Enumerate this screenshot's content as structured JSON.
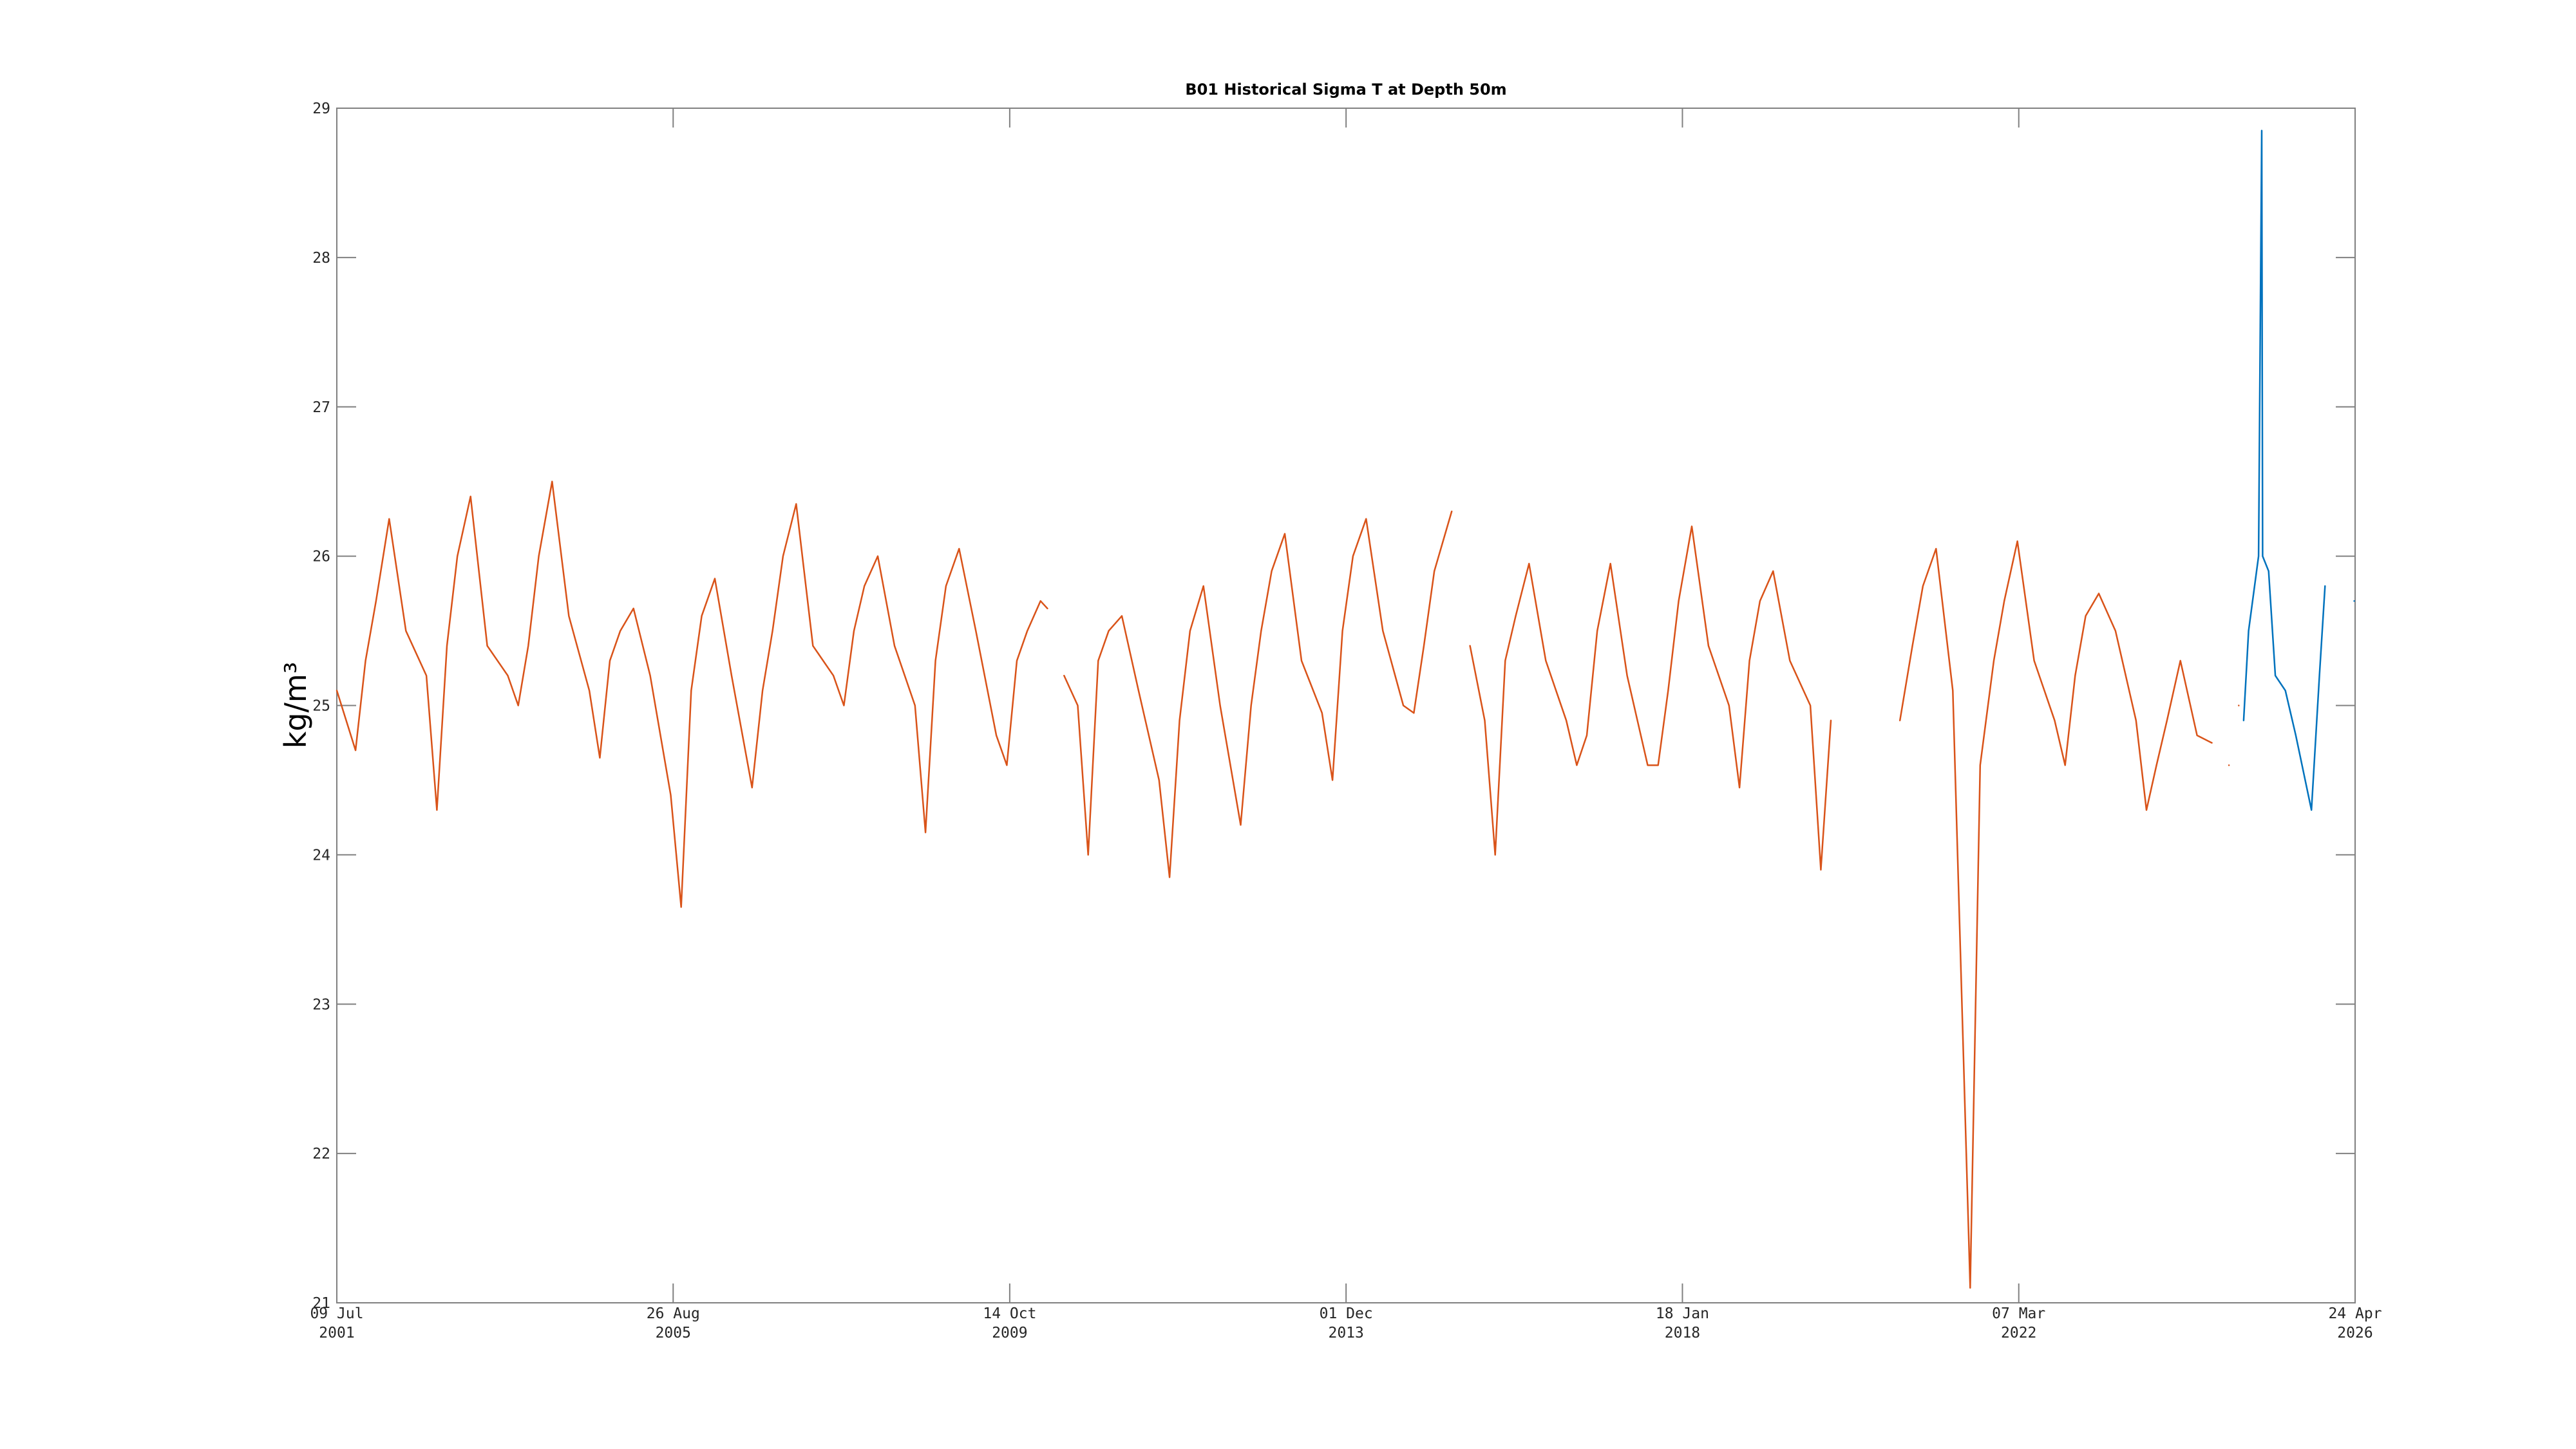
{
  "chart_data": {
    "type": "line",
    "title": "B01 Historical Sigma T at Depth 50m",
    "y_label": "kg/m³",
    "xlim": [
      "2001-07-09",
      "2026-04-24"
    ],
    "xticks": [
      {
        "value": "2001-07-09",
        "label": [
          "09 Jul",
          "2001"
        ]
      },
      {
        "value": "2005-08-26",
        "label": [
          "26 Aug",
          "2005"
        ]
      },
      {
        "value": "2009-10-14",
        "label": [
          "14 Oct",
          "2009"
        ]
      },
      {
        "value": "2013-12-01",
        "label": [
          "01 Dec",
          "2013"
        ]
      },
      {
        "value": "2018-01-18",
        "label": [
          "18 Jan",
          "2018"
        ]
      },
      {
        "value": "2022-03-07",
        "label": [
          "07 Mar",
          "2022"
        ]
      },
      {
        "value": "2026-04-24",
        "label": [
          "24 Apr",
          "2026"
        ]
      }
    ],
    "ylim": [
      21,
      29
    ],
    "yticks": [
      21,
      22,
      23,
      24,
      25,
      26,
      27,
      28,
      29
    ],
    "grid": false,
    "series": [
      {
        "color": "#D95319",
        "x": [
          "2001-07-09",
          "2001-10-01",
          "2001-11-15",
          "2002-01-01",
          "2002-03-01",
          "2002-05-15",
          "2002-08-15",
          "2002-10-01",
          "2002-11-15",
          "2003-01-01",
          "2003-03-01",
          "2003-05-15",
          "2003-08-15",
          "2003-10-01",
          "2003-11-15",
          "2004-01-01",
          "2004-03-01",
          "2004-05-15",
          "2004-08-15",
          "2004-10-01",
          "2004-11-15",
          "2005-01-01",
          "2005-03-01",
          "2005-05-15",
          "2005-08-15",
          "2005-10-01",
          "2005-11-15",
          "2006-01-01",
          "2006-03-01",
          "2006-05-15",
          "2006-08-15",
          "2006-10-01",
          "2006-11-15",
          "2007-01-01",
          "2007-03-01",
          "2007-05-15",
          "2007-08-15",
          "2007-10-01",
          "2007-11-15",
          "2008-01-01",
          "2008-03-01",
          "2008-05-15",
          "2008-08-15",
          "2008-10-01",
          "2008-11-15",
          "2009-01-01",
          "2009-03-01",
          "2009-05-15",
          "2009-08-15",
          "2009-10-01",
          "2009-11-15",
          "2010-01-01",
          "2010-03-01",
          "2010-04-01",
          "2010-05-01",
          "2010-06-15",
          "2010-08-15",
          "2010-10-01",
          "2010-11-15",
          "2011-01-01",
          "2011-03-01",
          "2011-05-15",
          "2011-08-15",
          "2011-10-01",
          "2011-11-15",
          "2012-01-01",
          "2012-03-01",
          "2012-05-15",
          "2012-08-15",
          "2012-10-01",
          "2012-11-15",
          "2013-01-01",
          "2013-03-01",
          "2013-05-15",
          "2013-08-15",
          "2013-10-01",
          "2013-11-15",
          "2014-01-01",
          "2014-03-01",
          "2014-05-15",
          "2014-08-15",
          "2014-10-01",
          "2014-11-15",
          "2015-01-01",
          "2015-03-20",
          "2015-04-15",
          "2015-06-10",
          "2015-08-15",
          "2015-10-01",
          "2015-11-15",
          "2016-01-01",
          "2016-03-01",
          "2016-05-15",
          "2016-08-15",
          "2016-10-01",
          "2016-11-15",
          "2017-01-01",
          "2017-03-01",
          "2017-05-15",
          "2017-08-15",
          "2017-10-01",
          "2017-11-15",
          "2018-01-01",
          "2018-03-01",
          "2018-05-15",
          "2018-08-15",
          "2018-10-01",
          "2018-11-15",
          "2019-01-01",
          "2019-03-01",
          "2019-05-15",
          "2019-08-15",
          "2019-10-01",
          "2019-11-15",
          "2020-03-01",
          "2020-09-20",
          "2020-11-15",
          "2021-01-01",
          "2021-03-01",
          "2021-05-15",
          "2021-08-01",
          "2021-09-15",
          "2021-11-15",
          "2022-01-01",
          "2022-03-01",
          "2022-05-15",
          "2022-08-15",
          "2022-10-01",
          "2022-11-15",
          "2023-01-01",
          "2023-03-01",
          "2023-05-15",
          "2023-08-15",
          "2023-10-01",
          "2023-11-15",
          "2024-01-01",
          "2024-03-01",
          "2024-05-15",
          "2024-07-20",
          "2024-09-01",
          "2024-10-05",
          "2024-10-20",
          "2024-11-18"
        ],
        "values": [
          25.1,
          24.7,
          25.3,
          25.7,
          26.25,
          25.5,
          25.2,
          24.3,
          25.4,
          26.0,
          26.4,
          25.4,
          25.2,
          25.0,
          25.4,
          26.0,
          26.5,
          25.6,
          25.1,
          24.65,
          25.3,
          25.5,
          25.65,
          25.2,
          24.4,
          23.65,
          25.1,
          25.6,
          25.85,
          25.2,
          24.45,
          25.1,
          25.5,
          26.0,
          26.35,
          25.4,
          25.2,
          25.0,
          25.5,
          25.8,
          26.0,
          25.4,
          25.0,
          24.15,
          25.3,
          25.8,
          26.05,
          25.5,
          24.8,
          24.6,
          25.3,
          25.5,
          25.7,
          25.65,
          null,
          25.2,
          25.0,
          24.0,
          25.3,
          25.5,
          25.6,
          25.1,
          24.5,
          23.85,
          24.9,
          25.5,
          25.8,
          25.0,
          24.2,
          25.0,
          25.5,
          25.9,
          26.15,
          25.3,
          24.95,
          24.5,
          25.5,
          26.0,
          26.25,
          25.5,
          25.0,
          24.95,
          25.4,
          25.9,
          26.3,
          null,
          25.4,
          24.9,
          24.0,
          25.3,
          25.6,
          25.95,
          25.3,
          24.9,
          24.6,
          24.8,
          25.5,
          25.95,
          25.2,
          24.6,
          24.6,
          25.1,
          25.7,
          26.2,
          25.4,
          25.0,
          24.45,
          25.3,
          25.7,
          25.9,
          25.3,
          25.0,
          23.9,
          24.9,
          null,
          24.9,
          25.4,
          25.8,
          26.05,
          25.1,
          21.1,
          24.6,
          25.3,
          25.7,
          26.1,
          25.3,
          24.9,
          24.6,
          25.2,
          25.6,
          25.75,
          25.5,
          24.9,
          24.3,
          24.6,
          24.9,
          25.3,
          24.8,
          24.75,
          null,
          24.6,
          null,
          25.0
        ]
      },
      {
        "color": "#0072BD",
        "x": [
          "2024-12-10",
          "2025-01-01",
          "2025-02-15",
          "2025-03-01",
          "2025-03-05",
          "2025-04-01",
          "2025-05-01",
          "2025-06-15",
          "2025-08-01",
          "2025-10-10",
          "2025-11-15",
          "2025-12-10",
          "2026-02-01",
          "2026-04-20"
        ],
        "values": [
          24.9,
          25.5,
          26.0,
          28.85,
          26.0,
          25.9,
          25.2,
          25.1,
          24.8,
          24.3,
          25.2,
          25.8,
          null,
          25.7
        ]
      }
    ]
  }
}
